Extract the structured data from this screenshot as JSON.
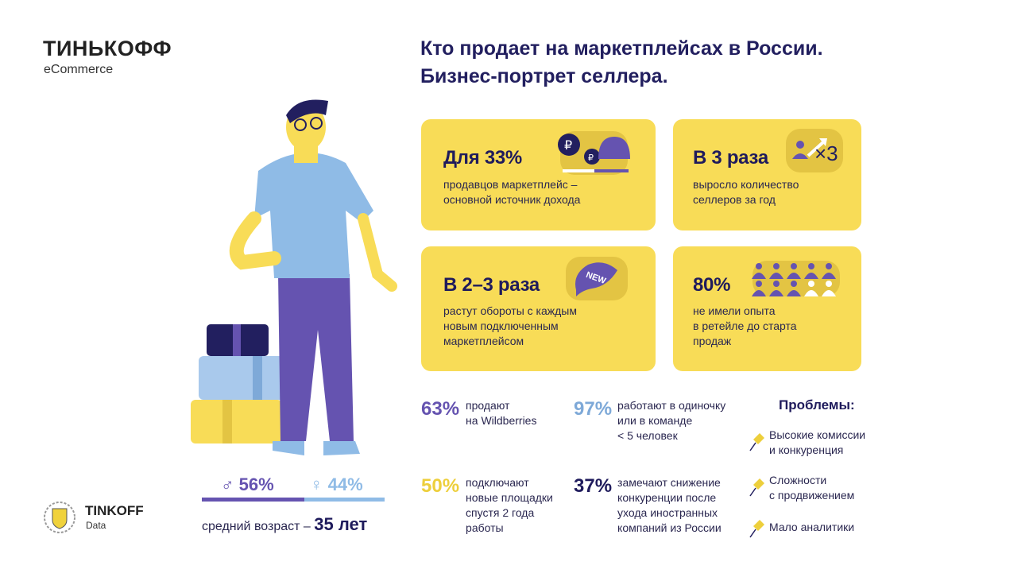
{
  "brand": {
    "name": "ТИНЬКОФФ",
    "sub": "eCommerce"
  },
  "title": {
    "line1": "Кто продает на маркетплейсах в России.",
    "line2": "Бизнес-портрет селлера."
  },
  "cards": [
    {
      "headline": "Для 33%",
      "text1": "продавцов маркетплейс –",
      "text2": "основной источник дохода",
      "icon": "wallet-rubles-icon"
    },
    {
      "headline": "В 3 раза",
      "text1": "выросло количество",
      "text2": "селлеров за год",
      "icon": "growth-x3-icon",
      "icon_text": "×3"
    },
    {
      "headline": "В 2–3 раза",
      "text1": "растут обороты с каждым",
      "text2": "новым подключенным",
      "text3": "маркетплейсом",
      "icon": "new-flag-icon",
      "icon_text": "NEW"
    },
    {
      "headline": "80%",
      "text1": "не имели опыта",
      "text2": "в ретейле до старта",
      "text3": "продаж",
      "icon": "people-grid-icon",
      "filled": 8,
      "total": 10
    }
  ],
  "stats": [
    {
      "value": "63%",
      "text1": "продают",
      "text2": "на Wildberries",
      "color": "#6553b0"
    },
    {
      "value": "97%",
      "text1": "работают в одиночку",
      "text2": "или в команде",
      "text3": "< 5 человек",
      "color": "#7ea9d8"
    },
    {
      "value": "50%",
      "text1": "подключают",
      "text2": "новые площадки",
      "text3": "спустя 2 года",
      "text4": "работы",
      "color": "#edcf3c"
    },
    {
      "value": "37%",
      "text1": "замечают снижение",
      "text2": "конкуренции после",
      "text3": "ухода иностранных",
      "text4": "компаний из России",
      "color": "#1f1b5c"
    }
  ],
  "problems": {
    "title": "Проблемы:",
    "items": [
      {
        "line1": "Высокие комиссии",
        "line2": "и конкуренция"
      },
      {
        "line1": "Сложности",
        "line2": "с продвижением"
      },
      {
        "line1": "Мало аналитики",
        "line2": ""
      }
    ]
  },
  "gender": {
    "male": "56%",
    "female": "44%",
    "male_share": 56,
    "male_color": "#6553b0",
    "female_color": "#8fbbe6"
  },
  "age": {
    "label": "средний возраст –",
    "value": "35 лет"
  },
  "footer_logo": {
    "name": "TINKOFF",
    "sub": "Data"
  }
}
